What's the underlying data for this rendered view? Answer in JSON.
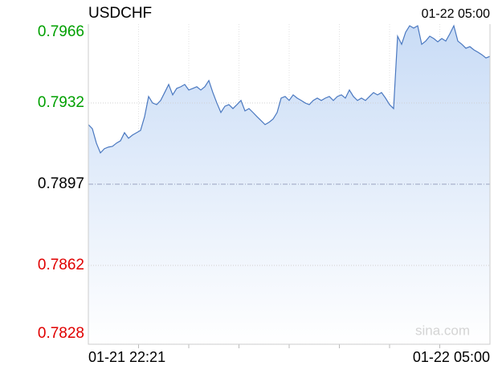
{
  "chart_data": {
    "type": "line",
    "title": "USDCHF",
    "timestamp": "01-22 05:00",
    "watermark": "sina.com",
    "x_labels": [
      "01-21 22:21",
      "01-22 05:00"
    ],
    "ylim": [
      0.7828,
      0.7966
    ],
    "yticks": [
      0.7966,
      0.7932,
      0.7897,
      0.7862,
      0.7828
    ],
    "up_color": "#00a000",
    "down_color": "#e00000",
    "flat_color": "#000000",
    "grid": true,
    "series": [
      {
        "color": "#4a78c0",
        "values": [
          0.79227,
          0.79209,
          0.79147,
          0.79105,
          0.79123,
          0.7913,
          0.79133,
          0.79147,
          0.79157,
          0.79192,
          0.79168,
          0.79182,
          0.79192,
          0.79202,
          0.79261,
          0.79348,
          0.7932,
          0.79313,
          0.79331,
          0.79365,
          0.794,
          0.79355,
          0.79383,
          0.7939,
          0.794,
          0.79376,
          0.79383,
          0.7939,
          0.79376,
          0.7939,
          0.79417,
          0.79365,
          0.7932,
          0.79279,
          0.79306,
          0.79313,
          0.79296,
          0.79313,
          0.79331,
          0.79286,
          0.79296,
          0.79279,
          0.79261,
          0.79244,
          0.79227,
          0.79237,
          0.79251,
          0.79279,
          0.79341,
          0.79348,
          0.79331,
          0.79355,
          0.79341,
          0.79331,
          0.7932,
          0.79313,
          0.79331,
          0.79341,
          0.79331,
          0.79341,
          0.79348,
          0.79331,
          0.79348,
          0.79355,
          0.79341,
          0.79376,
          0.79348,
          0.79331,
          0.79341,
          0.79331,
          0.79348,
          0.79365,
          0.79355,
          0.79365,
          0.79341,
          0.79313,
          0.79296,
          0.79608,
          0.79573,
          0.79625,
          0.79653,
          0.79643,
          0.79653,
          0.79573,
          0.79587,
          0.79608,
          0.79598,
          0.79584,
          0.79598,
          0.79587,
          0.79618,
          0.79653,
          0.79587,
          0.79573,
          0.79556,
          0.79563,
          0.79549,
          0.79539,
          0.79528,
          0.79514,
          0.79521
        ]
      }
    ]
  }
}
